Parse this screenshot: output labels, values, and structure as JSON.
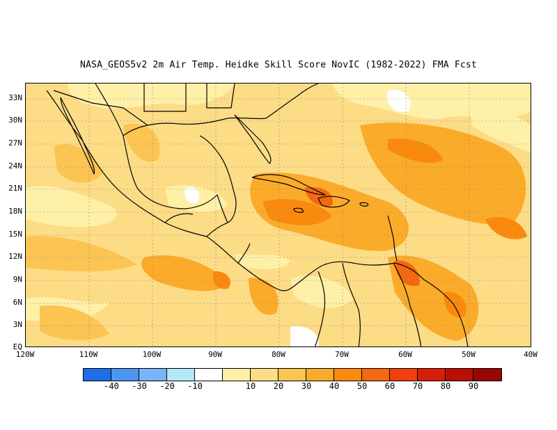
{
  "title": "NASA_GEOS5v2  2m Air Temp. Heidke Skill Score NovIC (1982-2022) FMA Fcst",
  "map": {
    "region": "Central America and Caribbean",
    "lon_range": [
      "120W",
      "40W"
    ],
    "lat_range": [
      "EQ",
      "35N"
    ],
    "grid": "dotted",
    "y_ticks": [
      "33N",
      "30N",
      "27N",
      "24N",
      "21N",
      "18N",
      "15N",
      "12N",
      "9N",
      "6N",
      "3N",
      "EQ"
    ],
    "x_ticks": [
      "120W",
      "110W",
      "100W",
      "90W",
      "80W",
      "70W",
      "60W",
      "50W",
      "40W"
    ],
    "fill_base": "#fddc86"
  },
  "colorbar": {
    "colors": [
      "#1e6ee6",
      "#4c96f0",
      "#78b4f8",
      "#b2e8f8",
      "#ffffff",
      "#fff0a8",
      "#fddc86",
      "#fcc452",
      "#fbab2a",
      "#f98a0e",
      "#f56710",
      "#ef3f0c",
      "#d61f08",
      "#bb0f04",
      "#9a0604"
    ],
    "labels": [
      "-40",
      "-30",
      "-20",
      "-10",
      "10",
      "20",
      "30",
      "40",
      "50",
      "60",
      "70",
      "80",
      "90"
    ]
  }
}
